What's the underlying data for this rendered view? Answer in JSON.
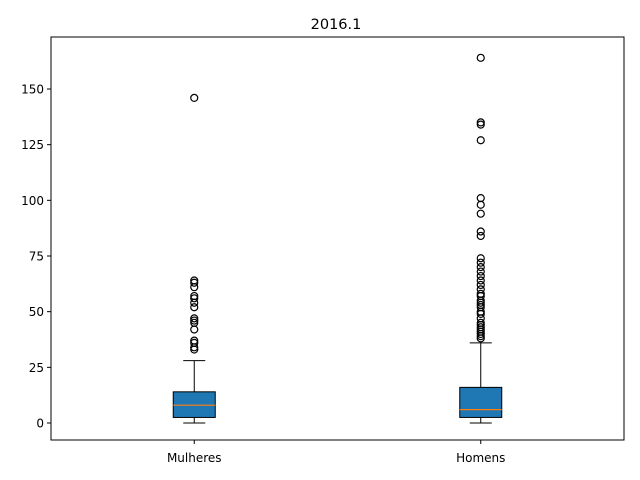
{
  "chart_data": {
    "type": "box",
    "title": "2016.1",
    "xlabel": "",
    "ylabel": "",
    "ylim": [
      -8,
      174
    ],
    "yticks": [
      0,
      25,
      50,
      75,
      100,
      125,
      150
    ],
    "categories": [
      "Mulheres",
      "Homens"
    ],
    "grid": false,
    "legend": "none",
    "box_color": "#1f77b4",
    "median_color": "#ff7f0e",
    "boxes": [
      {
        "name": "Mulheres",
        "whisker_low": 0,
        "q1": 2.5,
        "median": 8,
        "q3": 14,
        "whisker_high": 28,
        "outliers": [
          33,
          34,
          36,
          37,
          42,
          45,
          46,
          47,
          52,
          54,
          56,
          57,
          61,
          63,
          64,
          146
        ]
      },
      {
        "name": "Homens",
        "whisker_low": 0,
        "q1": 2.5,
        "median": 6,
        "q3": 16,
        "whisker_high": 36,
        "outliers": [
          38,
          39,
          40,
          41,
          42,
          43,
          44,
          45,
          47,
          49,
          50,
          52,
          53,
          54,
          55,
          57,
          58,
          60,
          62,
          64,
          66,
          68,
          70,
          72,
          74,
          84,
          86,
          94,
          98,
          101,
          127,
          134,
          135,
          164
        ]
      }
    ]
  }
}
